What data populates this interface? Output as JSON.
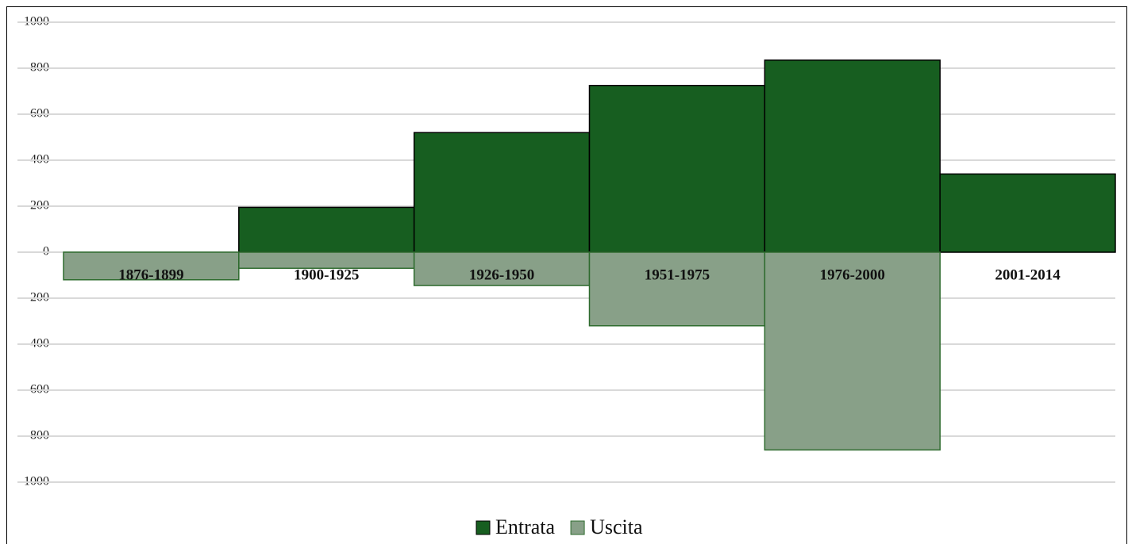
{
  "chart_data": {
    "type": "bar",
    "categories": [
      "1876-1899",
      "1900-1925",
      "1926-1950",
      "1951-1975",
      "1976-2000",
      "2001-2014"
    ],
    "series": [
      {
        "name": "Entrata",
        "color": "#175e20",
        "values": [
          0,
          195,
          520,
          725,
          835,
          340
        ]
      },
      {
        "name": "Uscita",
        "color": "#88a088",
        "values": [
          -120,
          -70,
          -145,
          -320,
          -860,
          0
        ]
      }
    ],
    "ylim": [
      -1000,
      1000
    ],
    "yticks": [
      -1000,
      -800,
      -600,
      -400,
      -200,
      0,
      200,
      400,
      600,
      800,
      1000
    ],
    "grid": true,
    "legend": "bottom"
  }
}
